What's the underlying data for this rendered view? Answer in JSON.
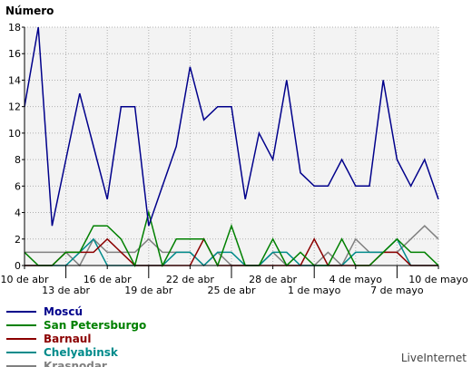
{
  "chart_data": {
    "type": "line",
    "ylabel": "Número",
    "ylim": [
      0,
      18
    ],
    "yticks": [
      0,
      2,
      4,
      6,
      8,
      10,
      12,
      14,
      16,
      18
    ],
    "grid": true,
    "x": [
      "10 abr",
      "11 abr",
      "12 abr",
      "13 abr",
      "14 abr",
      "15 abr",
      "16 abr",
      "17 abr",
      "18 abr",
      "19 abr",
      "20 abr",
      "21 abr",
      "22 abr",
      "23 abr",
      "24 abr",
      "25 abr",
      "26 abr",
      "27 abr",
      "28 abr",
      "29 abr",
      "30 abr",
      "1 may",
      "2 may",
      "3 may",
      "4 may",
      "5 may",
      "6 may",
      "7 may",
      "8 may",
      "9 may",
      "10 may"
    ],
    "xtick_labels_top": [
      {
        "index": 0,
        "label": "10 de abr"
      },
      {
        "index": 6,
        "label": "16 de abr"
      },
      {
        "index": 12,
        "label": "22 de abr"
      },
      {
        "index": 18,
        "label": "28 de abr"
      },
      {
        "index": 24,
        "label": "4 de mayo"
      },
      {
        "index": 30,
        "label": "10 de mayo"
      }
    ],
    "xtick_labels_bottom": [
      {
        "index": 3,
        "label": "13 de abr"
      },
      {
        "index": 9,
        "label": "19 de abr"
      },
      {
        "index": 15,
        "label": "25 de abr"
      },
      {
        "index": 21,
        "label": "1 de mayo"
      },
      {
        "index": 27,
        "label": "7 de mayo"
      }
    ],
    "series": [
      {
        "name": "Moscú",
        "color": "#00008b",
        "values": [
          12,
          18,
          3,
          8,
          13,
          9,
          5,
          12,
          12,
          3,
          6,
          9,
          15,
          11,
          12,
          12,
          5,
          10,
          8,
          14,
          7,
          6,
          6,
          8,
          6,
          6,
          14,
          8,
          6,
          8,
          5
        ]
      },
      {
        "name": "San Petersburgo",
        "color": "#008000",
        "values": [
          1,
          0,
          0,
          1,
          1,
          3,
          3,
          2,
          0,
          4,
          0,
          2,
          2,
          2,
          0,
          3,
          0,
          0,
          2,
          0,
          1,
          0,
          0,
          2,
          0,
          0,
          1,
          2,
          1,
          1,
          0
        ]
      },
      {
        "name": "Barnaul",
        "color": "#8b0000",
        "values": [
          0,
          0,
          0,
          1,
          1,
          1,
          2,
          1,
          0,
          0,
          0,
          0,
          0,
          2,
          0,
          0,
          0,
          0,
          0,
          0,
          0,
          2,
          0,
          0,
          0,
          0,
          1,
          1,
          0,
          0,
          0
        ]
      },
      {
        "name": "Chelyabinsk",
        "color": "#008b8b",
        "values": [
          0,
          0,
          0,
          0,
          1,
          2,
          0,
          0,
          0,
          0,
          0,
          1,
          1,
          0,
          1,
          1,
          0,
          0,
          1,
          1,
          0,
          0,
          0,
          0,
          1,
          1,
          1,
          2,
          0,
          0,
          0
        ]
      },
      {
        "name": "Krasnodar",
        "color": "#808080",
        "values": [
          1,
          1,
          1,
          1,
          0,
          2,
          1,
          1,
          1,
          2,
          1,
          1,
          1,
          0,
          1,
          0,
          0,
          0,
          1,
          0,
          0,
          0,
          1,
          0,
          2,
          1,
          1,
          1,
          2,
          3,
          2
        ]
      }
    ],
    "legend_position": "bottom-left"
  },
  "branding": {
    "label": "LiveInternet"
  }
}
